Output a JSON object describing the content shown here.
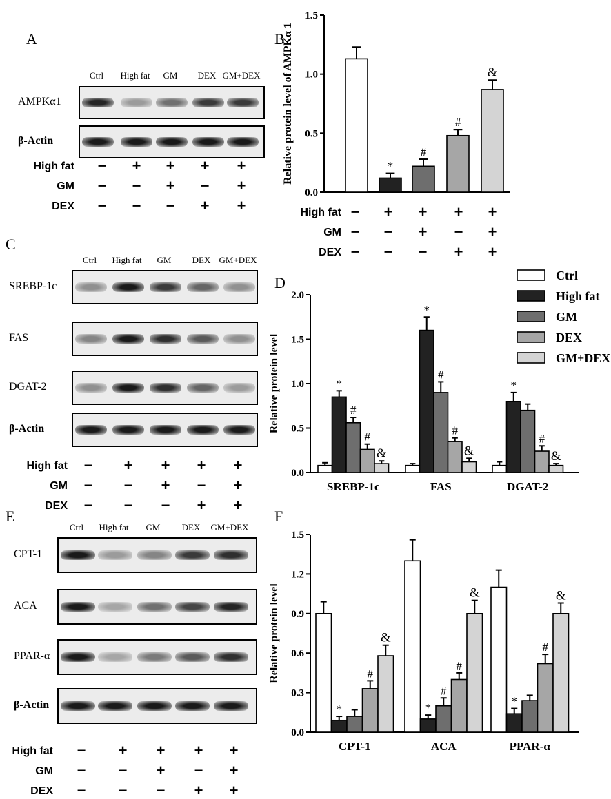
{
  "lanes": [
    "Ctrl",
    "High fat",
    "GM",
    "DEX",
    "GM+DEX"
  ],
  "conditions": [
    {
      "name": "High fat",
      "signs": [
        "−",
        "+",
        "+",
        "+",
        "+"
      ]
    },
    {
      "name": "GM",
      "signs": [
        "−",
        "−",
        "+",
        "−",
        "+"
      ]
    },
    {
      "name": "DEX",
      "signs": [
        "−",
        "−",
        "−",
        "+",
        "+"
      ]
    }
  ],
  "panels": {
    "A": {
      "label": "A",
      "blots": [
        "AMPKα1",
        "β-Actin"
      ]
    },
    "C": {
      "label": "C",
      "blots": [
        "SREBP-1c",
        "FAS",
        "DGAT-2",
        "β-Actin"
      ]
    },
    "E": {
      "label": "E",
      "blots": [
        "CPT-1",
        "ACA",
        "PPAR-α",
        "β-Actin"
      ]
    },
    "B": {
      "label": "B"
    },
    "D": {
      "label": "D"
    },
    "F": {
      "label": "F"
    }
  },
  "bar_colors": {
    "Ctrl": "#ffffff",
    "High fat": "#222222",
    "GM": "#6e6e6e",
    "DEX": "#a6a6a6",
    "GM+DEX": "#d4d4d4"
  },
  "chart_data": [
    {
      "type": "bar",
      "panel": "B",
      "ylabel": "Relative protein level of AMPKα 1",
      "ylim": [
        0,
        1.5
      ],
      "yticks": [
        "0.0",
        "0.5",
        "1.0",
        "1.5"
      ],
      "categories": [
        "Ctrl",
        "High fat",
        "GM",
        "DEX",
        "GM+DEX"
      ],
      "values": [
        1.13,
        0.12,
        0.22,
        0.48,
        0.87
      ],
      "errors": [
        0.1,
        0.04,
        0.06,
        0.05,
        0.08
      ],
      "annotations": [
        "",
        "*",
        "#",
        "#",
        "&"
      ]
    },
    {
      "type": "bar",
      "panel": "D",
      "ylabel": "Relative protein level",
      "ylim": [
        0,
        2.0
      ],
      "yticks": [
        "0.0",
        "0.5",
        "1.0",
        "1.5",
        "2.0"
      ],
      "categories": [
        "SREBP-1c",
        "FAS",
        "DGAT-2"
      ],
      "legend": [
        "Ctrl",
        "High fat",
        "GM",
        "DEX",
        "GM+DEX"
      ],
      "series": [
        {
          "name": "Ctrl",
          "values": [
            0.08,
            0.08,
            0.08
          ],
          "errors": [
            0.03,
            0.02,
            0.04
          ],
          "annotations": [
            "",
            "",
            ""
          ]
        },
        {
          "name": "High fat",
          "values": [
            0.85,
            1.6,
            0.8
          ],
          "errors": [
            0.07,
            0.15,
            0.1
          ],
          "annotations": [
            "*",
            "*",
            "*"
          ]
        },
        {
          "name": "GM",
          "values": [
            0.56,
            0.9,
            0.7
          ],
          "errors": [
            0.06,
            0.12,
            0.07
          ],
          "annotations": [
            "#",
            "#",
            ""
          ]
        },
        {
          "name": "DEX",
          "values": [
            0.26,
            0.35,
            0.24
          ],
          "errors": [
            0.06,
            0.04,
            0.06
          ],
          "annotations": [
            "#",
            "#",
            "#"
          ]
        },
        {
          "name": "GM+DEX",
          "values": [
            0.1,
            0.12,
            0.08
          ],
          "errors": [
            0.03,
            0.04,
            0.02
          ],
          "annotations": [
            "&",
            "&",
            "&"
          ]
        }
      ]
    },
    {
      "type": "bar",
      "panel": "F",
      "ylabel": "Relative protein level",
      "ylim": [
        0,
        1.5
      ],
      "yticks": [
        "0.0",
        "0.3",
        "0.6",
        "0.9",
        "1.2",
        "1.5"
      ],
      "categories": [
        "CPT-1",
        "ACA",
        "PPAR-α"
      ],
      "series": [
        {
          "name": "Ctrl",
          "values": [
            0.9,
            1.3,
            1.1
          ],
          "errors": [
            0.09,
            0.16,
            0.13
          ],
          "annotations": [
            "",
            "",
            ""
          ]
        },
        {
          "name": "High fat",
          "values": [
            0.09,
            0.1,
            0.14
          ],
          "errors": [
            0.03,
            0.03,
            0.04
          ],
          "annotations": [
            "*",
            "*",
            "*"
          ]
        },
        {
          "name": "GM",
          "values": [
            0.12,
            0.2,
            0.24
          ],
          "errors": [
            0.05,
            0.06,
            0.04
          ],
          "annotations": [
            "",
            "#",
            ""
          ]
        },
        {
          "name": "DEX",
          "values": [
            0.33,
            0.4,
            0.52
          ],
          "errors": [
            0.06,
            0.05,
            0.07
          ],
          "annotations": [
            "#",
            "#",
            "#"
          ]
        },
        {
          "name": "GM+DEX",
          "values": [
            0.58,
            0.9,
            0.9
          ],
          "errors": [
            0.08,
            0.1,
            0.08
          ],
          "annotations": [
            "&",
            "&",
            "&"
          ]
        }
      ]
    }
  ],
  "band_intensity": {
    "AMPKα1": [
      0.9,
      0.35,
      0.55,
      0.8,
      0.8
    ],
    "β-Actin": [
      0.95,
      0.95,
      0.95,
      0.95,
      0.95
    ],
    "SREBP-1c": [
      0.4,
      0.95,
      0.8,
      0.6,
      0.4
    ],
    "FAS": [
      0.45,
      0.95,
      0.85,
      0.65,
      0.4
    ],
    "DGAT-2": [
      0.4,
      0.95,
      0.85,
      0.6,
      0.35
    ],
    "CPT-1": [
      0.95,
      0.35,
      0.45,
      0.8,
      0.85
    ],
    "ACA": [
      0.95,
      0.3,
      0.55,
      0.75,
      0.9
    ],
    "PPAR-α": [
      0.95,
      0.3,
      0.5,
      0.65,
      0.85
    ]
  }
}
